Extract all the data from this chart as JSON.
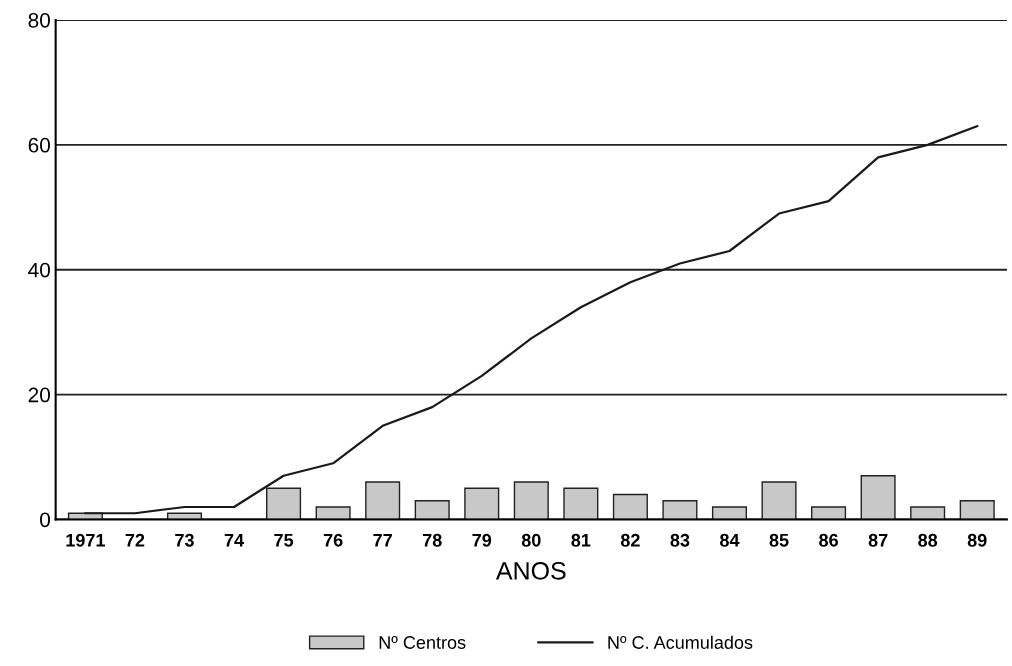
{
  "chart_data": {
    "type": "bar",
    "xlabel": "ANOS",
    "categories": [
      "1971",
      "72",
      "73",
      "74",
      "75",
      "76",
      "77",
      "78",
      "79",
      "80",
      "81",
      "82",
      "83",
      "84",
      "85",
      "86",
      "87",
      "88",
      "89"
    ],
    "series": [
      {
        "name": "Nº Centros",
        "color": "#c8c8c8",
        "values": [
          1,
          0,
          1,
          0,
          5,
          2,
          6,
          3,
          5,
          6,
          5,
          4,
          3,
          2,
          6,
          2,
          7,
          2,
          3
        ]
      },
      {
        "name": "Nº C. Acumulados",
        "type": "line",
        "color": "#1a1a1a",
        "values": [
          1,
          1,
          2,
          2,
          7,
          9,
          15,
          18,
          23,
          29,
          34,
          38,
          41,
          43,
          49,
          51,
          58,
          60,
          63
        ]
      }
    ],
    "ylim": [
      0,
      80
    ],
    "yticks": [
      0,
      20,
      40,
      60,
      80
    ],
    "grid": "y",
    "legend": "bottom"
  }
}
